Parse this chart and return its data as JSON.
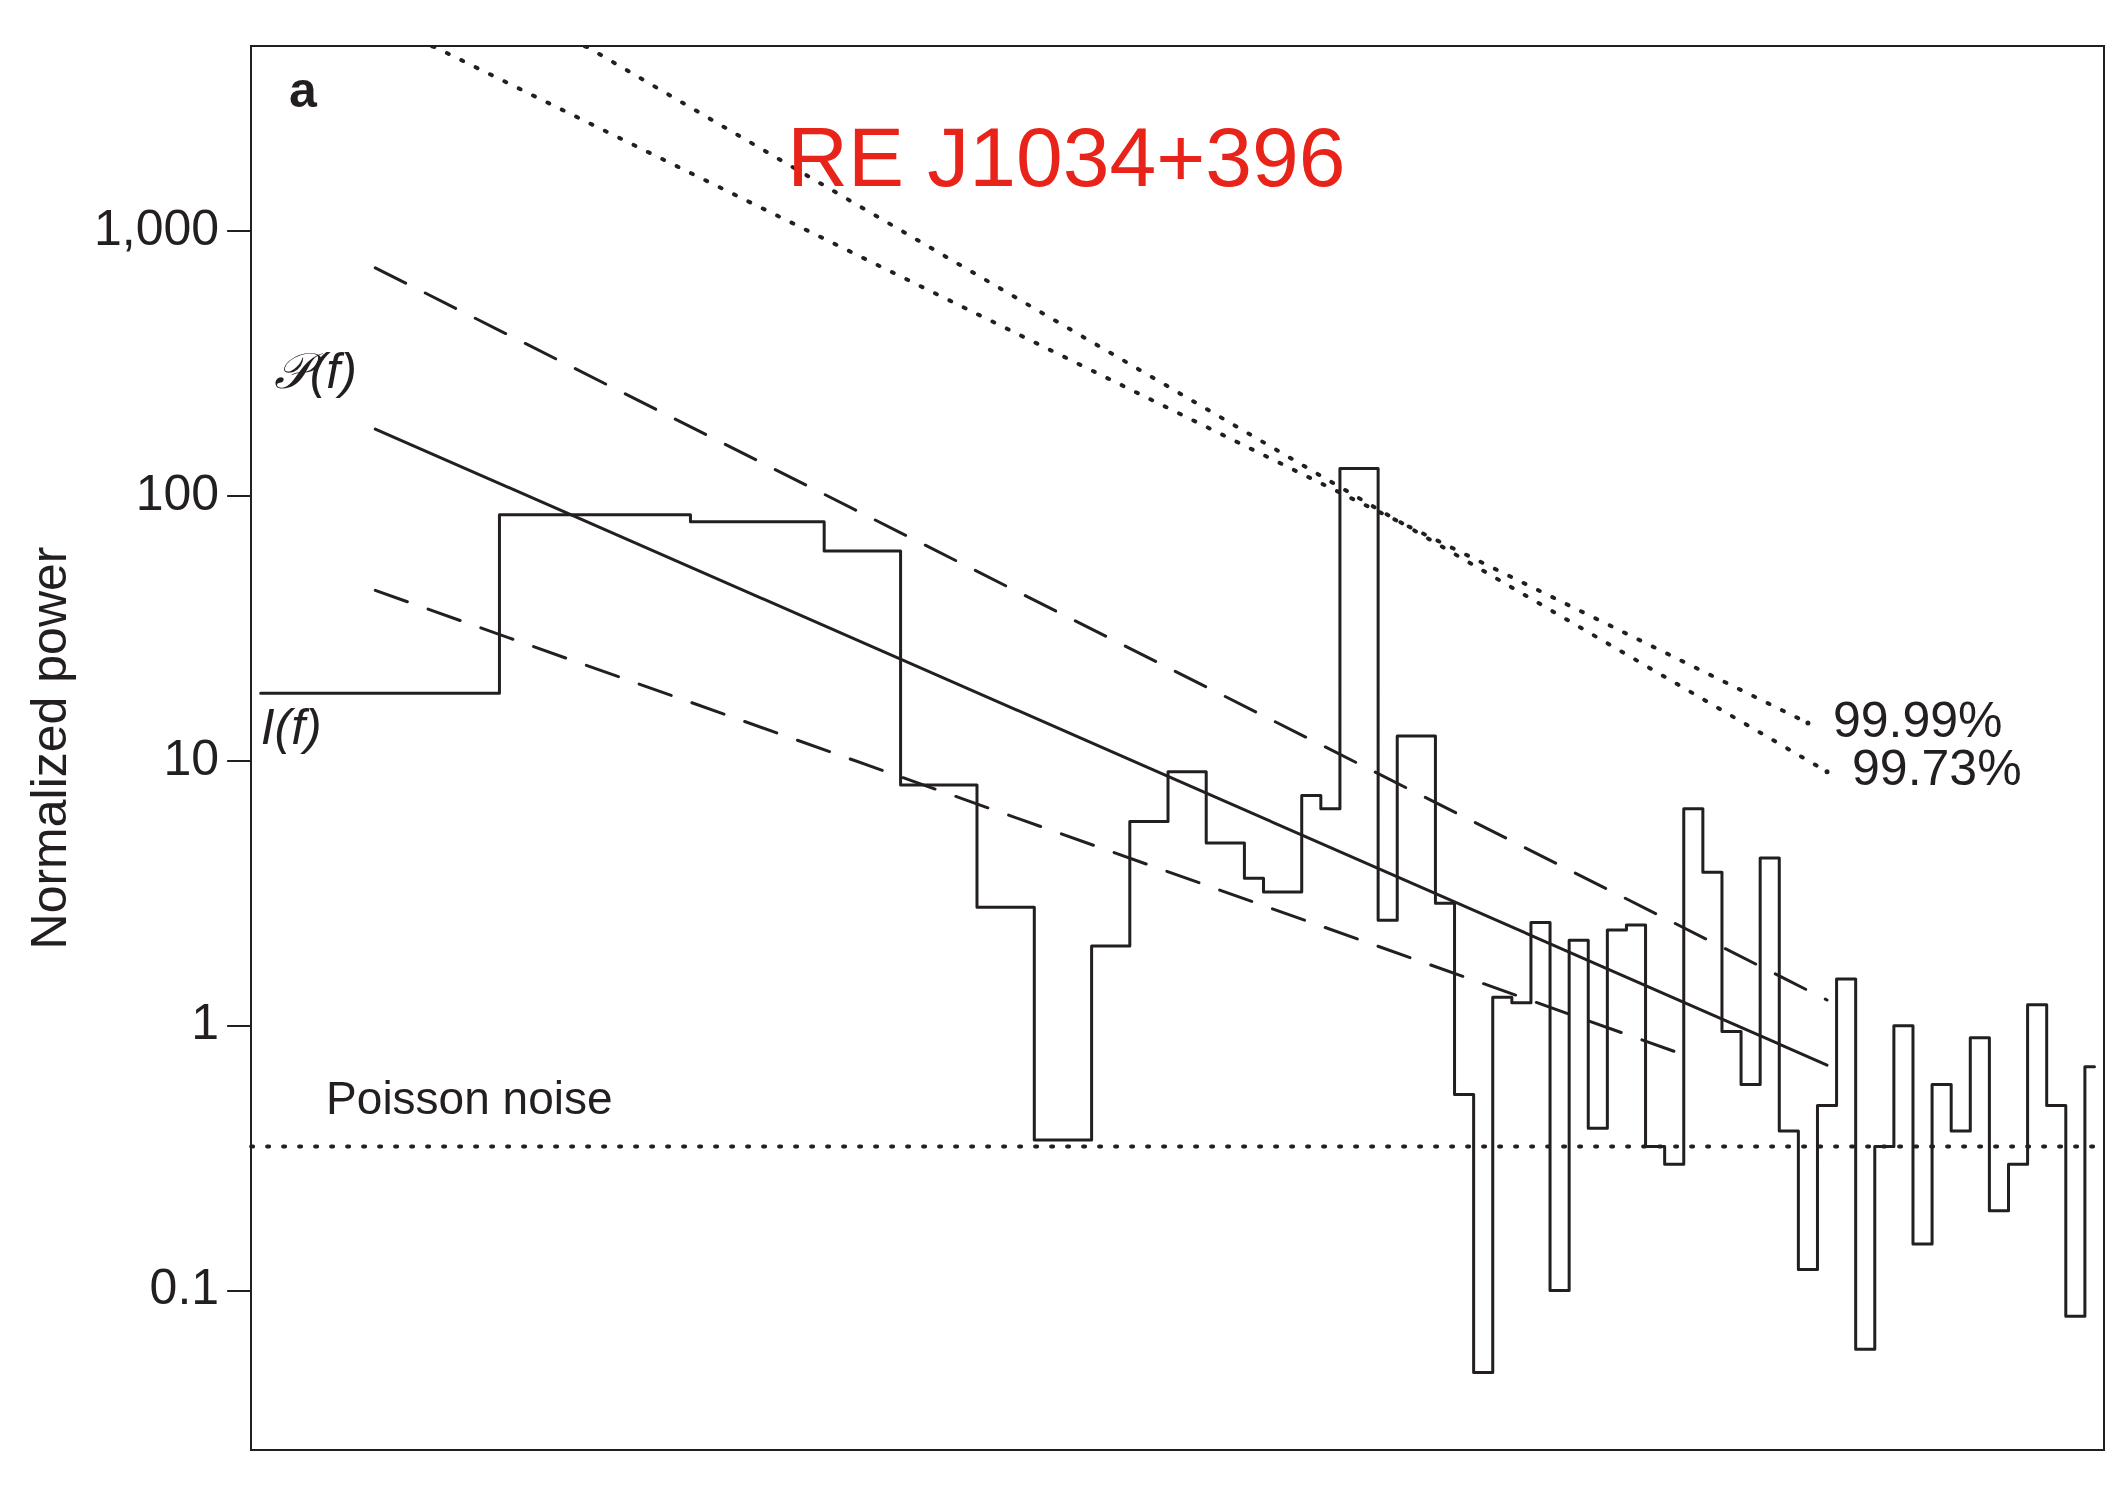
{
  "chart_data": {
    "type": "line",
    "title": "RE J1034+396",
    "ylabel": "Normalized power",
    "annotations": [
      "a"
    ],
    "categories": [
      null,
      null,
      null,
      null,
      null,
      null,
      null,
      null,
      null,
      null,
      null,
      null,
      null,
      null,
      null,
      null,
      null,
      null,
      null,
      null,
      null,
      null,
      null,
      null,
      null,
      null,
      null,
      null,
      null,
      null,
      null,
      null,
      null,
      null,
      null,
      null,
      null,
      null,
      null,
      null,
      null,
      null,
      null,
      null,
      null,
      null,
      null,
      null,
      null,
      null,
      null,
      null,
      null,
      null,
      null,
      null,
      null,
      null,
      null,
      null,
      null,
      null,
      null,
      null,
      null,
      null,
      null,
      null,
      null,
      null,
      null,
      null,
      null,
      null,
      null,
      null,
      null,
      null,
      null,
      null,
      null,
      null,
      null,
      null,
      null,
      null,
      null,
      null,
      null,
      null,
      null,
      null,
      null,
      null,
      null,
      null,
      null
    ],
    "log": "y",
    "ylim": [
      0.025,
      5000
    ],
    "yticks": [
      0.1,
      1,
      10,
      100,
      {
        "value": 1000,
        "label": "1,000"
      }
    ],
    "tick_labels": "y",
    "grid": false,
    "series": [
      {
        "name": "I(f)",
        "type": "step",
        "color": "#231f20",
        "line_style": "solid",
        "values": [
          18,
          18,
          18,
          18,
          18,
          18,
          18,
          18,
          18,
          18,
          18,
          18,
          18,
          85,
          85,
          85,
          85,
          85,
          85,
          85,
          85,
          85,
          85,
          80,
          80,
          80,
          80,
          80,
          80,
          80,
          62,
          62,
          62,
          62,
          8.1,
          8.1,
          8.1,
          8.1,
          2.8,
          2.8,
          2.8,
          0.37,
          0.37,
          0.37,
          2,
          2,
          5.9,
          5.9,
          9.1,
          9.1,
          4.9,
          4.9,
          3.6,
          3.2,
          3.2,
          7.4,
          6.6,
          127,
          127,
          2.5,
          12.4,
          12.4,
          2.9,
          0.55,
          0.049,
          1.28,
          1.22,
          2.45,
          0.1,
          2.1,
          0.41,
          2.3,
          2.4,
          0.35,
          0.3,
          6.6,
          3.8,
          0.95,
          0.6,
          4.3,
          0.4,
          0.12,
          0.5,
          1.5,
          0.06,
          0.35,
          1,
          0.15,
          0.6,
          0.4,
          0.9,
          0.2,
          0.3,
          1.2,
          0.5,
          0.08,
          0.7
        ]
      },
      {
        "name": "𝒫(f)",
        "color": "#231f20",
        "line_style": "solid",
        "values": [
          null,
          null,
          null,
          null,
          null,
          null,
          179,
          null,
          null,
          null,
          null,
          null,
          null,
          null,
          null,
          null,
          null,
          null,
          null,
          null,
          null,
          null,
          null,
          null,
          null,
          null,
          null,
          null,
          null,
          null,
          null,
          null,
          null,
          null,
          null,
          null,
          null,
          null,
          null,
          null,
          null,
          null,
          null,
          null,
          null,
          null,
          null,
          null,
          null,
          null,
          null,
          null,
          null,
          null,
          null,
          null,
          null,
          null,
          null,
          null,
          null,
          null,
          null,
          null,
          null,
          null,
          null,
          null,
          null,
          null,
          null,
          null,
          null,
          null,
          null,
          null,
          null,
          null,
          null,
          null,
          null,
          null,
          0.71,
          null,
          null,
          null,
          null,
          null,
          null,
          null,
          null,
          null,
          null,
          null,
          null,
          null,
          null
        ]
      },
      {
        "color": "#231f20",
        "line_style": "dashed",
        "values": [
          null,
          null,
          null,
          null,
          null,
          null,
          727,
          null,
          null,
          null,
          null,
          null,
          null,
          null,
          null,
          null,
          null,
          null,
          null,
          null,
          null,
          null,
          null,
          null,
          null,
          null,
          null,
          null,
          null,
          null,
          null,
          null,
          null,
          null,
          null,
          null,
          null,
          null,
          null,
          null,
          null,
          null,
          null,
          null,
          null,
          null,
          null,
          null,
          null,
          null,
          null,
          null,
          null,
          null,
          null,
          null,
          null,
          null,
          null,
          null,
          null,
          null,
          null,
          null,
          null,
          null,
          null,
          null,
          null,
          null,
          null,
          null,
          null,
          null,
          null,
          null,
          null,
          null,
          null,
          null,
          null,
          null,
          1.25,
          null,
          null,
          null,
          null,
          null,
          null,
          null,
          null,
          null,
          null,
          null,
          null,
          null,
          null
        ]
      },
      {
        "color": "#231f20",
        "line_style": "dashed",
        "values": [
          null,
          null,
          null,
          null,
          null,
          null,
          44,
          null,
          null,
          null,
          null,
          null,
          null,
          null,
          null,
          null,
          null,
          null,
          null,
          null,
          null,
          null,
          null,
          null,
          null,
          null,
          null,
          null,
          null,
          null,
          null,
          null,
          null,
          null,
          null,
          null,
          null,
          null,
          null,
          null,
          null,
          null,
          null,
          null,
          null,
          null,
          null,
          null,
          null,
          null,
          null,
          null,
          null,
          null,
          null,
          null,
          null,
          null,
          null,
          null,
          null,
          null,
          null,
          null,
          null,
          null,
          null,
          null,
          null,
          null,
          null,
          null,
          null,
          null,
          0.8,
          null,
          null,
          null,
          null,
          null,
          null,
          null,
          null,
          null,
          null,
          null,
          null,
          null,
          null,
          null,
          null,
          null,
          null,
          null,
          null,
          null,
          null
        ]
      },
      {
        "name": "99.99%",
        "color": "#231f20",
        "line_style": "dotted",
        "values": [
          null,
          null,
          null,
          null,
          null,
          null,
          null,
          null,
          null,
          5000,
          null,
          null,
          null,
          null,
          null,
          null,
          null,
          null,
          null,
          null,
          null,
          null,
          null,
          null,
          null,
          null,
          null,
          null,
          null,
          null,
          null,
          null,
          null,
          null,
          null,
          null,
          null,
          null,
          null,
          null,
          null,
          null,
          null,
          null,
          null,
          null,
          null,
          null,
          null,
          null,
          null,
          null,
          null,
          null,
          null,
          null,
          null,
          null,
          null,
          null,
          null,
          null,
          null,
          null,
          null,
          null,
          null,
          null,
          null,
          null,
          null,
          null,
          null,
          null,
          null,
          null,
          null,
          null,
          null,
          null,
          null,
          13.9,
          null,
          null,
          null,
          null,
          null,
          null,
          null,
          null,
          null,
          null,
          null,
          null,
          null,
          null,
          null
        ]
      },
      {
        "name": "99.73%",
        "color": "#231f20",
        "line_style": "dotted",
        "values": [
          null,
          null,
          null,
          null,
          null,
          null,
          null,
          null,
          null,
          null,
          null,
          null,
          null,
          null,
          null,
          null,
          null,
          5000,
          null,
          null,
          null,
          null,
          null,
          null,
          null,
          null,
          null,
          null,
          null,
          null,
          null,
          null,
          null,
          null,
          null,
          null,
          null,
          null,
          null,
          null,
          null,
          null,
          null,
          null,
          null,
          null,
          null,
          null,
          null,
          null,
          null,
          null,
          null,
          null,
          null,
          null,
          null,
          null,
          null,
          null,
          null,
          null,
          null,
          null,
          null,
          null,
          null,
          null,
          null,
          null,
          null,
          null,
          null,
          null,
          null,
          null,
          null,
          null,
          null,
          null,
          null,
          null,
          9.1,
          null,
          null,
          null,
          null,
          null,
          null,
          null,
          null,
          null,
          null,
          null,
          null,
          null,
          null
        ]
      }
    ],
    "ref_lines": [
      {
        "axis": "y",
        "value": 0.35,
        "label": "Poisson noise",
        "color": "#231f20",
        "line_style": "dotted"
      }
    ]
  }
}
